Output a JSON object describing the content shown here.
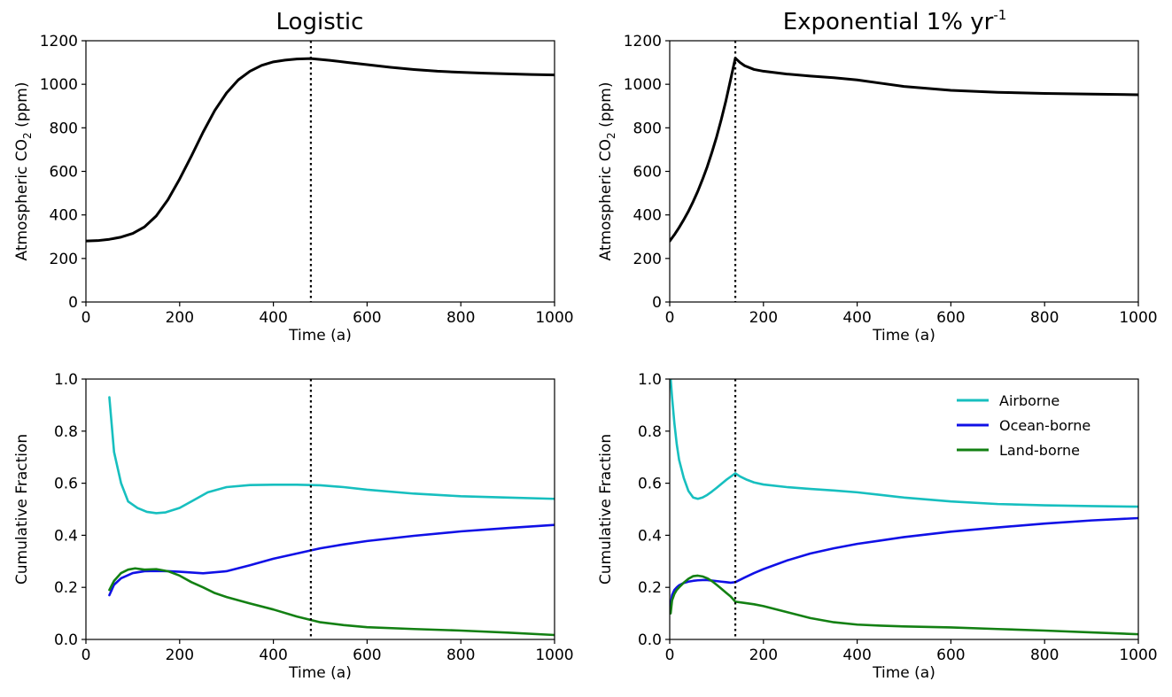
{
  "titles": {
    "left": "Logistic",
    "right_main": "Exponential 1% yr",
    "right_sup": "-1"
  },
  "colors": {
    "airborne": "#17bfbf",
    "ocean": "#1010e6",
    "land": "#138013",
    "co2": "#000000"
  },
  "chart_data": [
    {
      "id": "logistic-co2",
      "type": "line",
      "xlabel": "Time (a)",
      "ylabel": "Atmospheric CO2 (ppm)",
      "xlim": [
        0,
        1000
      ],
      "ylim": [
        0,
        1200
      ],
      "xticks": [
        0,
        200,
        400,
        600,
        800,
        1000
      ],
      "yticks": [
        0,
        200,
        400,
        600,
        800,
        1000,
        1200
      ],
      "vline": 480,
      "series": [
        {
          "key": "co2",
          "x": [
            0,
            25,
            50,
            75,
            100,
            125,
            150,
            175,
            200,
            225,
            250,
            275,
            300,
            325,
            350,
            375,
            400,
            425,
            450,
            480,
            520,
            560,
            600,
            650,
            700,
            750,
            800,
            850,
            900,
            950,
            1000
          ],
          "values": [
            280,
            282,
            288,
            298,
            315,
            345,
            395,
            470,
            565,
            670,
            780,
            880,
            960,
            1020,
            1060,
            1087,
            1103,
            1111,
            1116,
            1118,
            1110,
            1100,
            1090,
            1078,
            1068,
            1060,
            1055,
            1051,
            1048,
            1045,
            1043
          ]
        }
      ]
    },
    {
      "id": "exponential-co2",
      "type": "line",
      "xlabel": "Time (a)",
      "ylabel": "Atmospheric CO2 (ppm)",
      "xlim": [
        0,
        1000
      ],
      "ylim": [
        0,
        1200
      ],
      "xticks": [
        0,
        200,
        400,
        600,
        800,
        1000
      ],
      "yticks": [
        0,
        200,
        400,
        600,
        800,
        1000,
        1200
      ],
      "vline": 140,
      "series": [
        {
          "key": "co2",
          "x": [
            0,
            10,
            20,
            30,
            40,
            50,
            60,
            70,
            80,
            90,
            100,
            110,
            120,
            130,
            140,
            150,
            160,
            180,
            200,
            250,
            300,
            350,
            400,
            450,
            500,
            600,
            700,
            800,
            900,
            1000
          ],
          "values": [
            280,
            309,
            342,
            378,
            417,
            461,
            509,
            563,
            621,
            687,
            758,
            838,
            925,
            1022,
            1120,
            1100,
            1085,
            1068,
            1060,
            1047,
            1038,
            1030,
            1020,
            1005,
            990,
            972,
            963,
            958,
            955,
            952
          ]
        }
      ]
    },
    {
      "id": "logistic-fraction",
      "type": "line",
      "xlabel": "Time (a)",
      "ylabel": "Cumulative Fraction",
      "xlim": [
        0,
        1000
      ],
      "ylim": [
        0,
        1.0
      ],
      "xticks": [
        0,
        200,
        400,
        600,
        800,
        1000
      ],
      "yticks": [
        0.0,
        0.2,
        0.4,
        0.6,
        0.8,
        1.0
      ],
      "vline": 480,
      "series": [
        {
          "key": "airborne",
          "x": [
            50,
            60,
            75,
            90,
            110,
            130,
            150,
            170,
            200,
            230,
            260,
            300,
            350,
            400,
            450,
            500,
            550,
            600,
            700,
            800,
            900,
            1000
          ],
          "values": [
            0.93,
            0.72,
            0.6,
            0.53,
            0.505,
            0.49,
            0.485,
            0.488,
            0.505,
            0.535,
            0.565,
            0.585,
            0.593,
            0.594,
            0.594,
            0.592,
            0.585,
            0.575,
            0.56,
            0.55,
            0.545,
            0.54
          ]
        },
        {
          "key": "ocean",
          "x": [
            50,
            60,
            75,
            100,
            125,
            150,
            175,
            200,
            250,
            300,
            350,
            400,
            450,
            500,
            550,
            600,
            700,
            800,
            900,
            1000
          ],
          "values": [
            0.17,
            0.21,
            0.235,
            0.255,
            0.262,
            0.263,
            0.262,
            0.26,
            0.254,
            0.262,
            0.285,
            0.31,
            0.33,
            0.35,
            0.365,
            0.378,
            0.398,
            0.415,
            0.428,
            0.44
          ]
        },
        {
          "key": "land",
          "x": [
            50,
            60,
            75,
            90,
            105,
            125,
            150,
            175,
            200,
            225,
            250,
            275,
            300,
            350,
            400,
            450,
            500,
            550,
            600,
            700,
            800,
            900,
            1000
          ],
          "values": [
            0.19,
            0.225,
            0.255,
            0.268,
            0.273,
            0.268,
            0.27,
            0.262,
            0.245,
            0.22,
            0.2,
            0.178,
            0.163,
            0.138,
            0.115,
            0.088,
            0.066,
            0.055,
            0.047,
            0.04,
            0.034,
            0.026,
            0.017
          ]
        }
      ]
    },
    {
      "id": "exponential-fraction",
      "type": "line",
      "xlabel": "Time (a)",
      "ylabel": "Cumulative Fraction",
      "xlim": [
        0,
        1000
      ],
      "ylim": [
        0,
        1.0
      ],
      "xticks": [
        0,
        200,
        400,
        600,
        800,
        1000
      ],
      "yticks": [
        0.0,
        0.2,
        0.4,
        0.6,
        0.8,
        1.0
      ],
      "vline": 140,
      "legend": {
        "placement": "upper right",
        "entries": [
          "Airborne",
          "Ocean-borne",
          "Land-borne"
        ]
      },
      "series": [
        {
          "key": "airborne",
          "name": "Airborne",
          "x": [
            2,
            5,
            10,
            15,
            20,
            30,
            40,
            50,
            60,
            70,
            80,
            90,
            100,
            110,
            120,
            130,
            140,
            150,
            165,
            180,
            200,
            250,
            300,
            350,
            400,
            450,
            500,
            600,
            700,
            800,
            900,
            1000
          ],
          "values": [
            1.0,
            0.93,
            0.83,
            0.75,
            0.69,
            0.62,
            0.57,
            0.545,
            0.54,
            0.545,
            0.555,
            0.568,
            0.582,
            0.597,
            0.612,
            0.625,
            0.638,
            0.626,
            0.613,
            0.603,
            0.595,
            0.585,
            0.578,
            0.572,
            0.565,
            0.555,
            0.545,
            0.53,
            0.52,
            0.515,
            0.512,
            0.51
          ]
        },
        {
          "key": "ocean",
          "name": "Ocean-borne",
          "x": [
            2,
            5,
            10,
            15,
            20,
            30,
            40,
            50,
            60,
            70,
            80,
            90,
            100,
            110,
            120,
            130,
            140,
            160,
            180,
            200,
            250,
            300,
            350,
            400,
            450,
            500,
            600,
            700,
            800,
            900,
            1000
          ],
          "values": [
            0.13,
            0.17,
            0.19,
            0.2,
            0.208,
            0.217,
            0.222,
            0.225,
            0.227,
            0.228,
            0.228,
            0.226,
            0.224,
            0.222,
            0.22,
            0.218,
            0.22,
            0.238,
            0.255,
            0.27,
            0.303,
            0.33,
            0.35,
            0.367,
            0.38,
            0.393,
            0.414,
            0.43,
            0.445,
            0.457,
            0.466
          ]
        },
        {
          "key": "land",
          "name": "Land-borne",
          "x": [
            2,
            5,
            10,
            15,
            20,
            30,
            40,
            50,
            60,
            70,
            80,
            90,
            100,
            110,
            120,
            130,
            140,
            160,
            180,
            200,
            250,
            300,
            350,
            400,
            450,
            500,
            600,
            700,
            800,
            900,
            1000
          ],
          "values": [
            0.1,
            0.15,
            0.175,
            0.19,
            0.2,
            0.218,
            0.233,
            0.243,
            0.245,
            0.242,
            0.235,
            0.224,
            0.21,
            0.195,
            0.18,
            0.165,
            0.145,
            0.14,
            0.135,
            0.128,
            0.105,
            0.082,
            0.066,
            0.057,
            0.053,
            0.05,
            0.046,
            0.04,
            0.034,
            0.027,
            0.02
          ]
        }
      ]
    }
  ]
}
